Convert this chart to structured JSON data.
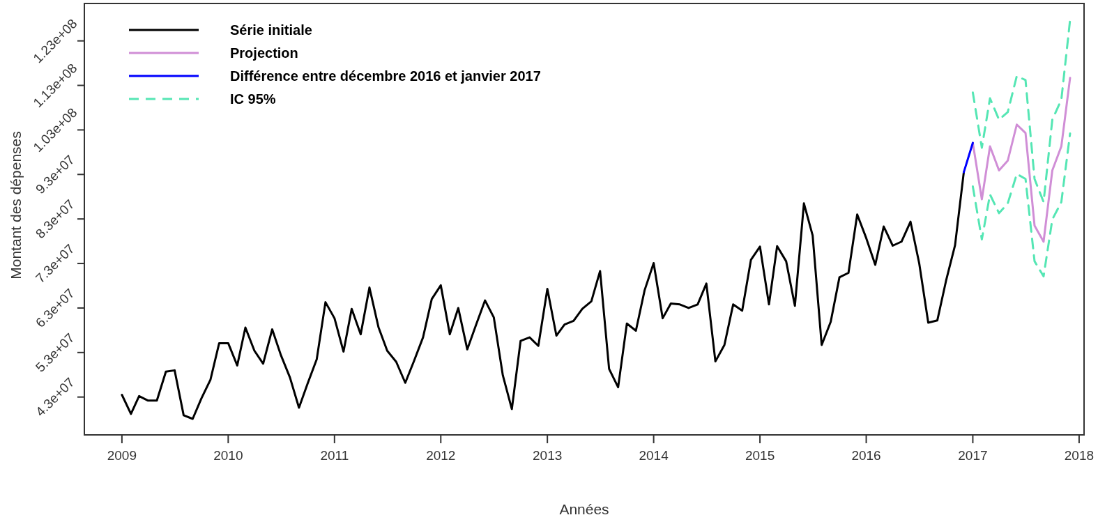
{
  "chart_data": {
    "type": "line",
    "xlabel": "Années",
    "ylabel": "Montant des dépenses",
    "xlim": [
      "2008-08-25",
      "2018-01-18"
    ],
    "xticks": [
      "2009",
      "2010",
      "2011",
      "2012",
      "2013",
      "2014",
      "2015",
      "2016",
      "2017",
      "2018"
    ],
    "ylim": [
      34500000,
      131400000
    ],
    "yticks": [
      {
        "value": 43000000,
        "label": "4.3e+07"
      },
      {
        "value": 53000000,
        "label": "5.3e+07"
      },
      {
        "value": 63000000,
        "label": "6.3e+07"
      },
      {
        "value": 73000000,
        "label": "7.3e+07"
      },
      {
        "value": 83000000,
        "label": "8.3e+07"
      },
      {
        "value": 93000000,
        "label": "9.3e+07"
      },
      {
        "value": 103000000,
        "label": "1.03e+08"
      },
      {
        "value": 113000000,
        "label": "1.13e+08"
      },
      {
        "value": 123000000,
        "label": "1.23e+08"
      }
    ],
    "grid": false,
    "legend": "top left",
    "marker": "none",
    "series": [
      {
        "name": "Série initiale",
        "color": "#000000",
        "line_style": "solid",
        "x": [
          "2009-01",
          "2009-02",
          "2009-03",
          "2009-04",
          "2009-05",
          "2009-06",
          "2009-07",
          "2009-08",
          "2009-09",
          "2009-10",
          "2009-11",
          "2009-12",
          "2010-01",
          "2010-02",
          "2010-03",
          "2010-04",
          "2010-05",
          "2010-06",
          "2010-07",
          "2010-08",
          "2010-09",
          "2010-10",
          "2010-11",
          "2010-12",
          "2011-01",
          "2011-02",
          "2011-03",
          "2011-04",
          "2011-05",
          "2011-06",
          "2011-07",
          "2011-08",
          "2011-09",
          "2011-10",
          "2011-11",
          "2011-12",
          "2012-01",
          "2012-02",
          "2012-03",
          "2012-04",
          "2012-05",
          "2012-06",
          "2012-07",
          "2012-08",
          "2012-09",
          "2012-10",
          "2012-11",
          "2012-12",
          "2013-01",
          "2013-02",
          "2013-03",
          "2013-04",
          "2013-05",
          "2013-06",
          "2013-07",
          "2013-08",
          "2013-09",
          "2013-10",
          "2013-11",
          "2013-12",
          "2014-01",
          "2014-02",
          "2014-03",
          "2014-04",
          "2014-05",
          "2014-06",
          "2014-07",
          "2014-08",
          "2014-09",
          "2014-10",
          "2014-11",
          "2014-12",
          "2015-01",
          "2015-02",
          "2015-03",
          "2015-04",
          "2015-05",
          "2015-06",
          "2015-07",
          "2015-08",
          "2015-09",
          "2015-10",
          "2015-11",
          "2015-12",
          "2016-01",
          "2016-02",
          "2016-03",
          "2016-04",
          "2016-05",
          "2016-06",
          "2016-07",
          "2016-08",
          "2016-09",
          "2016-10",
          "2016-11",
          "2016-12"
        ],
        "values": [
          43500000,
          39200000,
          43200000,
          42200000,
          42200000,
          48700000,
          49000000,
          38900000,
          38100000,
          42700000,
          46900000,
          55100000,
          55100000,
          50100000,
          58600000,
          53400000,
          50500000,
          58200000,
          52400000,
          47400000,
          40600000,
          46100000,
          51500000,
          64300000,
          60700000,
          53200000,
          62800000,
          57100000,
          67600000,
          58700000,
          53400000,
          50900000,
          46200000,
          51100000,
          56400000,
          65000000,
          68100000,
          57100000,
          63000000,
          53700000,
          59200000,
          64700000,
          60900000,
          47900000,
          40300000,
          55600000,
          56400000,
          54500000,
          67300000,
          56800000,
          59300000,
          60100000,
          62800000,
          64500000,
          71300000,
          49300000,
          45200000,
          59500000,
          57900000,
          67000000,
          73100000,
          60700000,
          64000000,
          63800000,
          63000000,
          63800000,
          68500000,
          51000000,
          54700000,
          63800000,
          62400000,
          73800000,
          76800000,
          63800000,
          76900000,
          73500000,
          63500000,
          86500000,
          79300000,
          54700000,
          59900000,
          69900000,
          70900000,
          84000000,
          78700000,
          72700000,
          81300000,
          77000000,
          77900000,
          82400000,
          73000000,
          59700000,
          60200000,
          69100000,
          77100000,
          93500000
        ]
      },
      {
        "name": "Projection",
        "color": "#d08ed6",
        "line_style": "solid",
        "x": [
          "2017-01",
          "2017-02",
          "2017-03",
          "2017-04",
          "2017-05",
          "2017-06",
          "2017-07",
          "2017-08",
          "2017-09",
          "2017-10",
          "2017-11",
          "2017-12"
        ],
        "values": [
          100100000,
          87400000,
          99300000,
          93900000,
          96100000,
          104200000,
          102300000,
          81500000,
          77900000,
          93900000,
          99300000,
          114700000
        ]
      },
      {
        "name": "Différence entre décembre 2016 et janvier 2017",
        "color": "#0000ff",
        "line_style": "solid",
        "x": [
          "2016-12",
          "2017-01"
        ],
        "values": [
          93500000,
          100100000
        ]
      },
      {
        "name": "IC 95%",
        "color": "#55e6b4",
        "line_style": "dashed",
        "x": [
          "2017-01",
          "2017-02",
          "2017-03",
          "2017-04",
          "2017-05",
          "2017-06",
          "2017-07",
          "2017-08",
          "2017-09",
          "2017-10",
          "2017-11",
          "2017-12"
        ],
        "values": [
          111400000,
          99000000,
          110100000,
          105300000,
          107000000,
          115100000,
          114200000,
          92000000,
          86800000,
          105300000,
          109800000,
          127700000
        ]
      },
      {
        "color": "#55e6b4",
        "line_style": "dashed",
        "x": [
          "2017-01",
          "2017-02",
          "2017-03",
          "2017-04",
          "2017-05",
          "2017-06",
          "2017-07",
          "2017-08",
          "2017-09",
          "2017-10",
          "2017-11",
          "2017-12"
        ],
        "values": [
          90300000,
          78400000,
          88500000,
          84300000,
          86500000,
          93100000,
          92000000,
          73500000,
          70100000,
          82900000,
          86800000,
          102200000
        ]
      }
    ]
  }
}
